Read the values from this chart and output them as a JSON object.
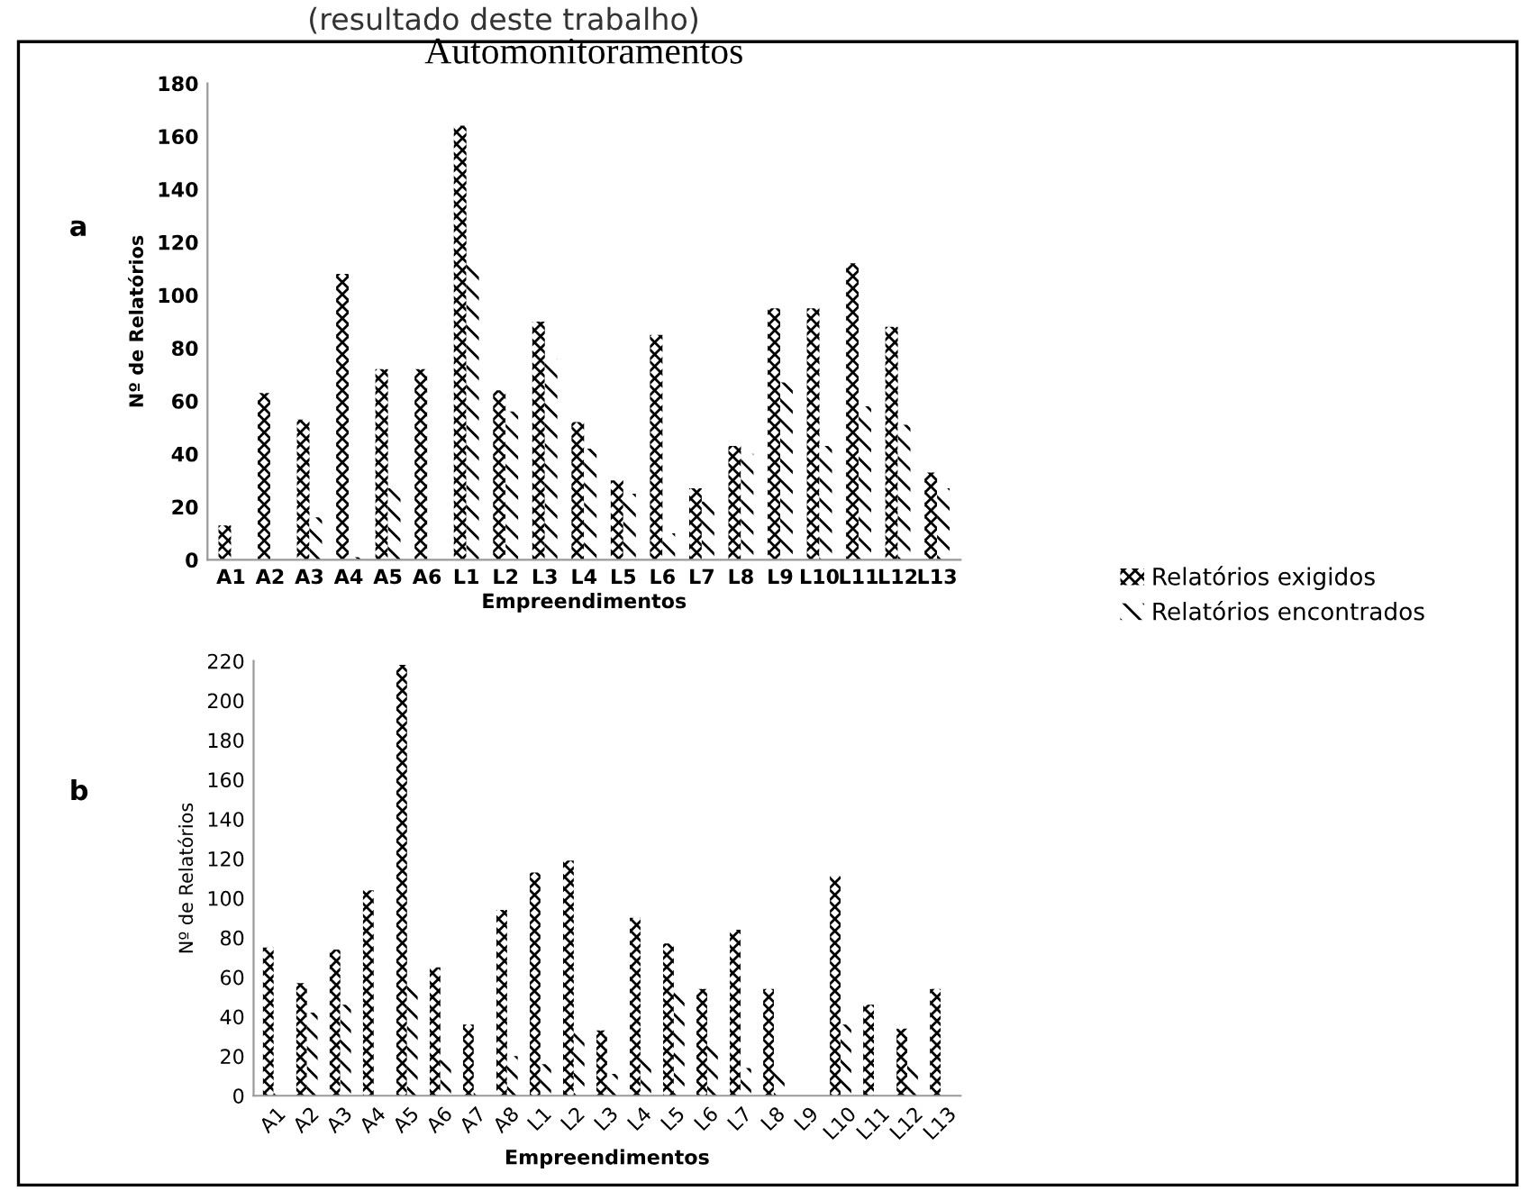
{
  "chart_data": [
    {
      "type": "bar",
      "title": "Automonitoramentos",
      "xlabel": "Empreendimentos",
      "ylabel": "Nº de Relatórios",
      "annotations": [
        "(resultado deste trabalho)",
        "a"
      ],
      "categories": [
        "A1",
        "A2",
        "A3",
        "A4",
        "A5",
        "A6",
        "L1",
        "L2",
        "L3",
        "L4",
        "L5",
        "L6",
        "L7",
        "L8",
        "L9",
        "L10",
        "L11",
        "L12",
        "L13"
      ],
      "series": [
        {
          "name": "Relatórios exigidos",
          "color": "#000000",
          "values": [
            13,
            63,
            53,
            108,
            72,
            72,
            164,
            64,
            90,
            52,
            30,
            85,
            27,
            43,
            95,
            95,
            112,
            88,
            33
          ]
        },
        {
          "name": "Relatórios encontrados",
          "color": "#000000",
          "values": [
            0,
            0,
            16,
            1,
            27,
            0,
            112,
            56,
            76,
            42,
            25,
            10,
            22,
            40,
            67,
            43,
            58,
            51,
            27
          ]
        }
      ],
      "ylim": [
        0,
        180
      ],
      "yticks": [
        0,
        20,
        40,
        60,
        80,
        100,
        120,
        140,
        160,
        180
      ],
      "legend": "right",
      "grid": false
    },
    {
      "type": "bar",
      "xlabel": "Empreendimentos",
      "ylabel": "Nº de Relatórios",
      "annotations": [
        "b"
      ],
      "categories": [
        "A1",
        "A2",
        "A3",
        "A4",
        "A5",
        "A6",
        "A7",
        "A8",
        "L1",
        "L2",
        "L3",
        "L4",
        "L5",
        "L6",
        "L7",
        "L8",
        "L9",
        "L10",
        "L11",
        "L12",
        "L13"
      ],
      "series": [
        {
          "color": "#000000",
          "values": [
            75,
            57,
            74,
            104,
            218,
            65,
            36,
            94,
            113,
            119,
            33,
            90,
            77,
            54,
            84,
            54,
            0,
            111,
            46,
            34,
            54
          ]
        },
        {
          "color": "#000000",
          "values": [
            4,
            42,
            46,
            0,
            57,
            18,
            3,
            20,
            16,
            34,
            11,
            21,
            55,
            27,
            14,
            13,
            0,
            36,
            0,
            17,
            0
          ]
        }
      ],
      "ylim": [
        0,
        220
      ],
      "yticks": [
        0,
        20,
        40,
        60,
        80,
        100,
        120,
        140,
        160,
        180,
        200,
        220
      ],
      "grid": false
    }
  ]
}
